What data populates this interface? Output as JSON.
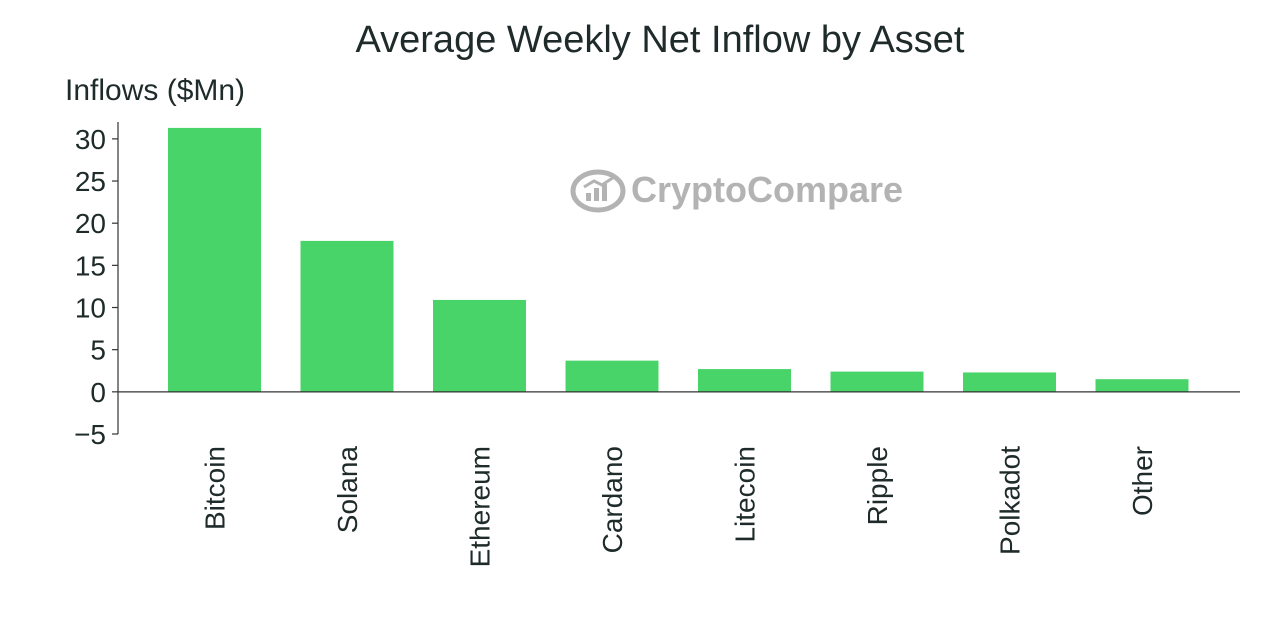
{
  "chart_data": {
    "type": "bar",
    "title": "Average Weekly Net Inflow by Asset",
    "ylabel": "Inflows ($Mn)",
    "xlabel": "",
    "categories": [
      "Bitcoin",
      "Solana",
      "Ethereum",
      "Cardano",
      "Litecoin",
      "Ripple",
      "Polkadot",
      "Other"
    ],
    "values": [
      31.3,
      17.9,
      10.9,
      3.7,
      2.7,
      2.4,
      2.3,
      1.5
    ],
    "ylim": [
      -5,
      32
    ],
    "yticks": [
      -5,
      0,
      5,
      10,
      15,
      20,
      25,
      30
    ],
    "ytick_labels": [
      "−5",
      "0",
      "5",
      "10",
      "15",
      "20",
      "25",
      "30"
    ],
    "bar_color": "#48d468",
    "grid": false
  },
  "watermark": {
    "text": "CryptoCompare",
    "color": "#b3b3b3",
    "icon": "cryptocompare-logo-icon"
  }
}
